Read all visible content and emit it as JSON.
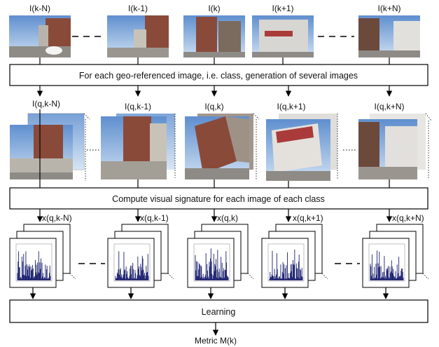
{
  "top_labels": [
    "I(k-N)",
    "I(k-1)",
    "I(k)",
    "I(k+1)",
    "I(k+N)"
  ],
  "mid_labels": [
    "I(q,k-N)",
    "I(q,k-1)",
    "I(q,k)",
    "I(q,k+1)",
    "I(q,k+N)"
  ],
  "sig_labels": [
    "x(q,k-N)",
    "x(q,k-1)",
    "x(q,k)",
    "x(q,k+1)",
    "x(q,k+N)"
  ],
  "steps": {
    "generation": "For each geo-referenced image, i.e. class, generation of several images",
    "signature": "Compute visual signature for each image of each class",
    "learning": "Learning"
  },
  "output": "Metric M(k)",
  "colors": {
    "sky": "#7fa6d6",
    "brick": "#8a4a3a",
    "concrete": "#b9b4ab",
    "histogram": "#1a1f6e"
  }
}
